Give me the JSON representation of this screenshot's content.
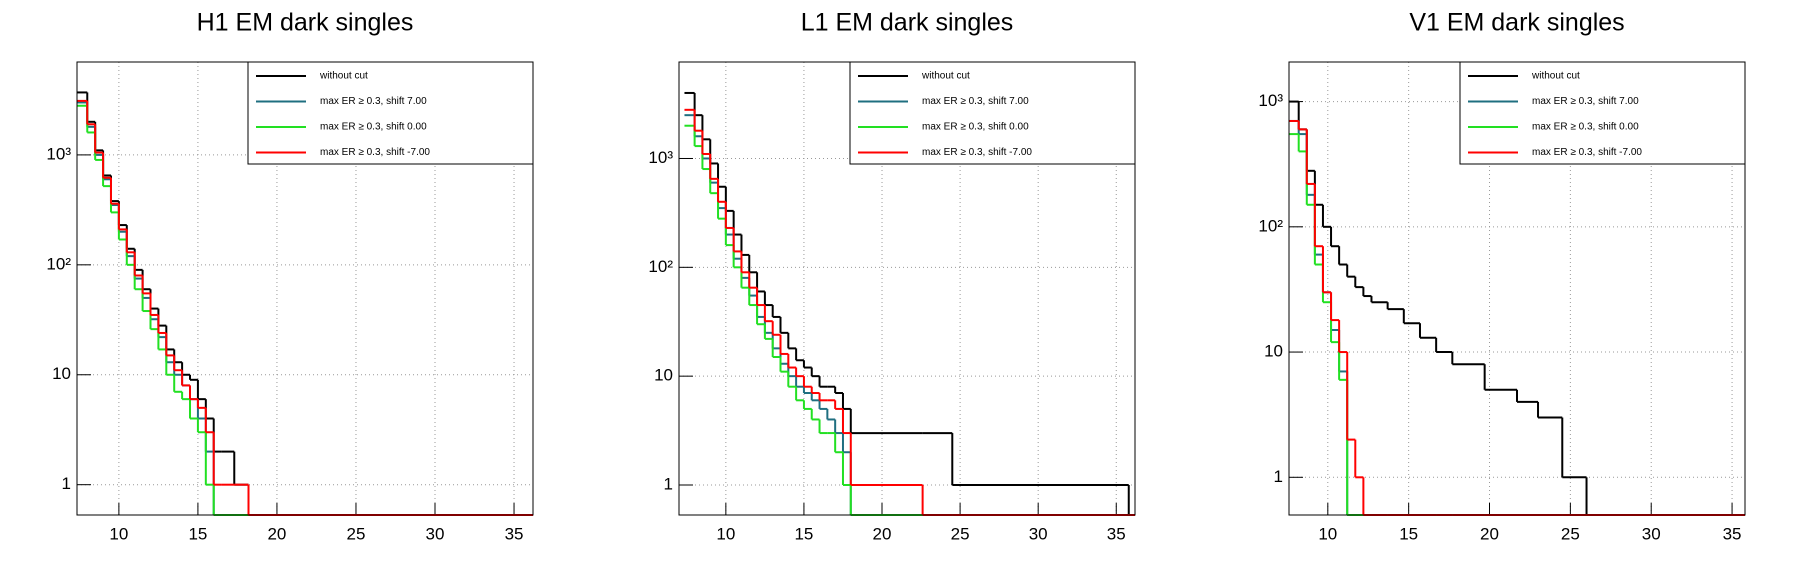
{
  "chart_data": [
    {
      "type": "histogram",
      "title": "H1 EM dark singles",
      "log_y": true,
      "grid": true,
      "legend": "upper right",
      "xlim": [
        7.35,
        36.2
      ],
      "ylim": [
        0.53,
        7000
      ],
      "xticks": [
        10,
        15,
        20,
        25,
        30,
        35
      ],
      "yticks": [
        1,
        10,
        {
          "value": 100,
          "label": "10²"
        },
        {
          "value": 1000,
          "label": "10³"
        }
      ],
      "bins": [
        7.35,
        8,
        8.5,
        9,
        9.5,
        10,
        10.5,
        11,
        11.5,
        12,
        12.5,
        13,
        13.5,
        14,
        14.5,
        15,
        15.5,
        16,
        16.5,
        17.3,
        18.2,
        36.2
      ],
      "series": [
        {
          "name": "without cut",
          "color": "#000000",
          "values": [
            3700,
            2000,
            1100,
            650,
            380,
            230,
            140,
            90,
            60,
            40,
            28,
            17,
            13,
            10,
            9,
            6,
            4,
            2,
            2,
            1,
            0
          ]
        },
        {
          "name": "max ER ≥ 0.3, shift 7.00",
          "color": "#1f6f80",
          "values": [
            3000,
            1800,
            1000,
            600,
            350,
            200,
            120,
            75,
            50,
            32,
            22,
            13,
            10,
            8,
            6,
            4,
            2,
            0,
            0,
            0,
            0
          ]
        },
        {
          "name": "max ER ≥ 0.3, shift 0.00",
          "color": "#22e022",
          "values": [
            2800,
            1600,
            900,
            520,
            300,
            170,
            100,
            60,
            38,
            26,
            17,
            10,
            7,
            6,
            4,
            3,
            1,
            0,
            0,
            0,
            0
          ]
        },
        {
          "name": "max ER ≥ 0.3, shift -7.00",
          "color": "#ff0000",
          "values": [
            3100,
            1900,
            1050,
            620,
            360,
            210,
            130,
            80,
            55,
            35,
            24,
            15,
            11,
            8,
            6,
            5,
            3,
            1,
            1,
            1,
            0
          ]
        }
      ]
    },
    {
      "type": "histogram",
      "title": "L1 EM dark singles",
      "log_y": true,
      "grid": true,
      "legend": "upper right",
      "xlim": [
        7,
        36.2
      ],
      "ylim": [
        0.53,
        7700
      ],
      "xticks": [
        10,
        15,
        20,
        25,
        30,
        35
      ],
      "yticks": [
        1,
        10,
        {
          "value": 100,
          "label": "10²"
        },
        {
          "value": 1000,
          "label": "10³"
        }
      ],
      "bins": [
        7.35,
        8,
        8.5,
        9,
        9.5,
        10,
        10.5,
        11,
        11.5,
        12,
        12.5,
        13,
        13.5,
        14,
        14.5,
        15,
        15.5,
        16,
        16.5,
        17,
        17.5,
        18,
        22.6,
        24.5,
        35.8,
        36.2
      ],
      "series": [
        {
          "name": "without cut",
          "color": "#000000",
          "values": [
            4000,
            2500,
            1500,
            900,
            550,
            330,
            200,
            130,
            90,
            60,
            45,
            35,
            25,
            18,
            14,
            12,
            10,
            8,
            8,
            7,
            5,
            3,
            3,
            1,
            0
          ]
        },
        {
          "name": "max ER ≥ 0.3, shift 7.00",
          "color": "#1f6f80",
          "values": [
            2500,
            1600,
            1000,
            600,
            350,
            200,
            120,
            80,
            55,
            35,
            25,
            18,
            13,
            10,
            8,
            7,
            6,
            5,
            4,
            3,
            2,
            0,
            0,
            0,
            0
          ]
        },
        {
          "name": "max ER ≥ 0.3, shift 0.00",
          "color": "#22e022",
          "values": [
            2000,
            1300,
            800,
            480,
            280,
            160,
            100,
            65,
            45,
            30,
            22,
            15,
            11,
            8,
            6,
            5,
            4,
            3,
            3,
            2,
            1,
            0,
            0,
            0,
            0
          ]
        },
        {
          "name": "max ER ≥ 0.3, shift -7.00",
          "color": "#ff0000",
          "values": [
            2800,
            1800,
            1100,
            650,
            400,
            230,
            140,
            90,
            65,
            45,
            32,
            24,
            16,
            12,
            10,
            8,
            7,
            6,
            6,
            5,
            3,
            1,
            0,
            0,
            0
          ]
        }
      ]
    },
    {
      "type": "histogram",
      "title": "V1 EM dark singles",
      "log_y": true,
      "grid": true,
      "legend": "upper right",
      "xlim": [
        7.6,
        35.8
      ],
      "ylim": [
        0.5,
        2070
      ],
      "xticks": [
        10,
        15,
        20,
        25,
        30,
        35
      ],
      "yticks": [
        1,
        10,
        {
          "value": 100,
          "label": "10²"
        },
        {
          "value": 1000,
          "label": "10³"
        }
      ],
      "bins": [
        7.6,
        8.2,
        8.7,
        9.2,
        9.7,
        10.2,
        10.7,
        11.2,
        11.7,
        12.2,
        12.7,
        13.7,
        14.7,
        15.7,
        16.7,
        17.7,
        19.7,
        21.7,
        23,
        24.5,
        26,
        35.8
      ],
      "series": [
        {
          "name": "without cut",
          "color": "#000000",
          "values": [
            1000,
            600,
            280,
            150,
            100,
            70,
            50,
            40,
            33,
            28,
            25,
            22,
            17,
            13,
            10,
            8,
            5,
            4,
            3,
            1,
            0
          ]
        },
        {
          "name": "max ER ≥ 0.3, shift 7.00",
          "color": "#1f6f80",
          "values": [
            700,
            550,
            180,
            60,
            30,
            15,
            7,
            0,
            0,
            0,
            0,
            0,
            0,
            0,
            0,
            0,
            0,
            0,
            0,
            0,
            0
          ]
        },
        {
          "name": "max ER ≥ 0.3, shift 0.00",
          "color": "#22e022",
          "values": [
            550,
            400,
            150,
            50,
            25,
            12,
            6,
            0,
            0,
            0,
            0,
            0,
            0,
            0,
            0,
            0,
            0,
            0,
            0,
            0,
            0
          ]
        },
        {
          "name": "max ER ≥ 0.3, shift -7.00",
          "color": "#ff0000",
          "values": [
            700,
            600,
            220,
            70,
            30,
            18,
            10,
            2,
            1,
            0,
            0,
            0,
            0,
            0,
            0,
            0,
            0,
            0,
            0,
            0,
            0
          ]
        }
      ]
    }
  ]
}
